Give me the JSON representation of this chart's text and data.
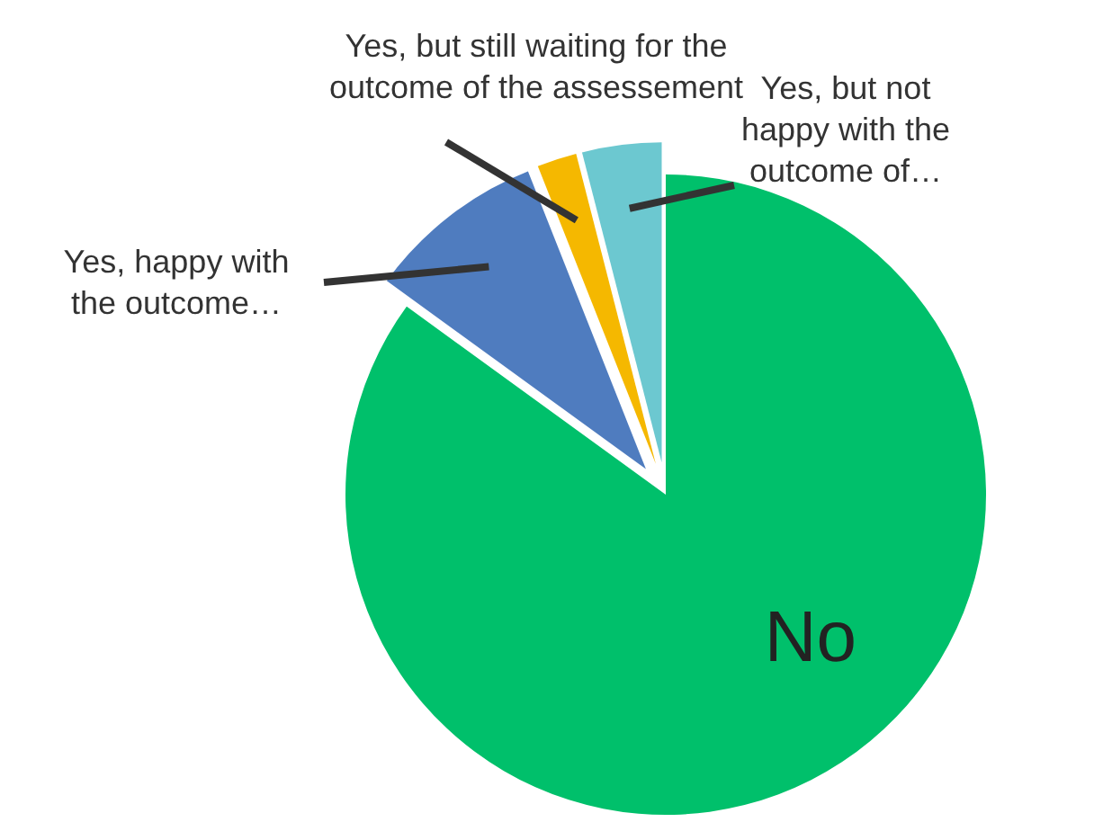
{
  "chart_data": {
    "type": "pie",
    "categories": [
      "No",
      "Yes, happy with the outcome…",
      "Yes, but still waiting for the outcome of the assessement",
      "Yes, but not happy with the outcome of…"
    ],
    "values": [
      85,
      9,
      2,
      4
    ],
    "colors": [
      "#00c06b",
      "#4f7cbf",
      "#f5b800",
      "#6cc8d0"
    ]
  }
}
